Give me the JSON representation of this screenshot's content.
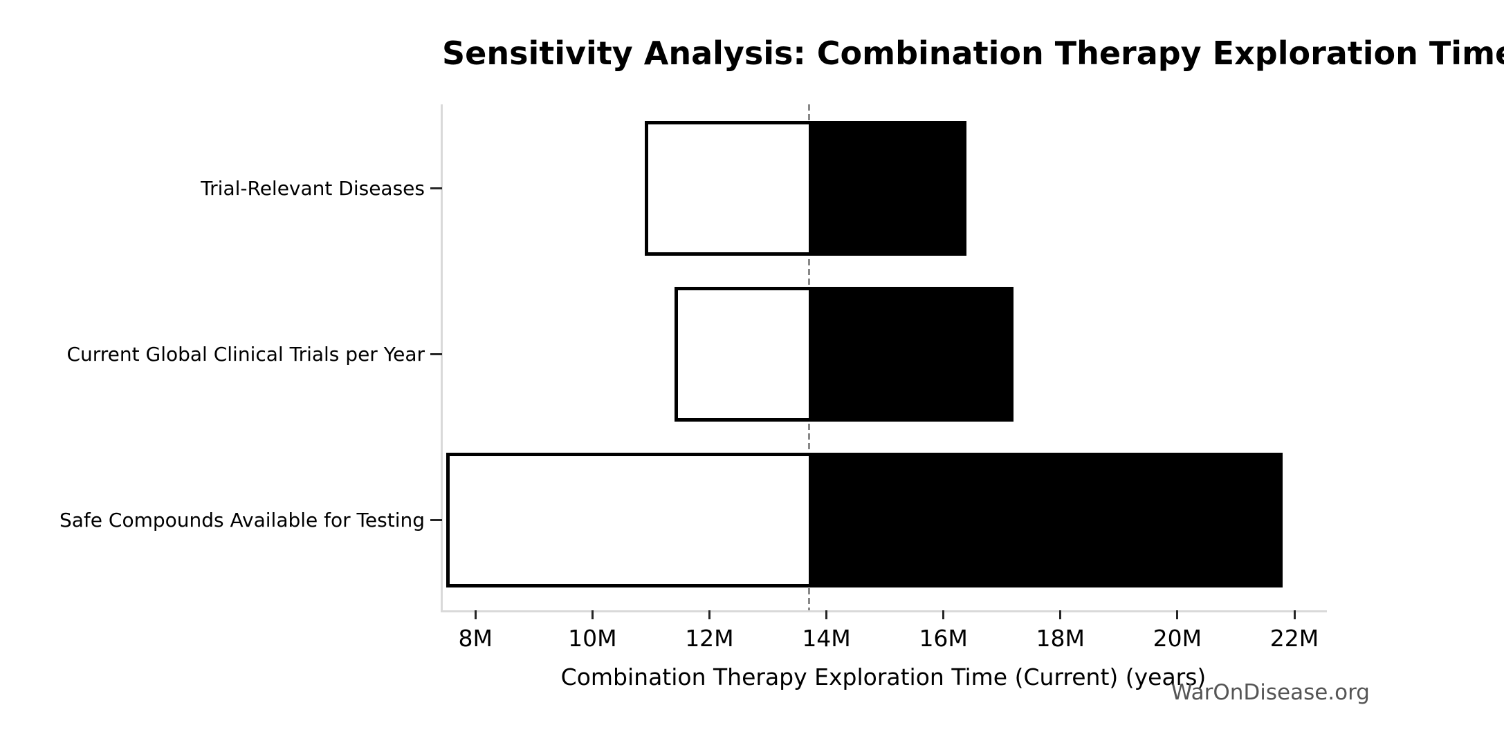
{
  "page": {
    "background": "#ffffff"
  },
  "watermark": "WarOnDisease.org",
  "chart_data": {
    "type": "bar",
    "subtype": "tornado-sensitivity",
    "orientation": "horizontal",
    "title": "Sensitivity Analysis: Combination Therapy Exploration Time (Current)",
    "xlabel": "Combination Therapy Exploration Time (Current) (years)",
    "ylabel": "",
    "categories": [
      "Trial-Relevant Diseases",
      "Current Global Clinical Trials per Year",
      "Safe Compounds Available for Testing"
    ],
    "bars": [
      {
        "label": "Trial-Relevant Diseases",
        "low": 10.9,
        "high": 16.4
      },
      {
        "label": "Current Global Clinical Trials per Year",
        "low": 11.4,
        "high": 17.2
      },
      {
        "label": "Safe Compounds Available for Testing",
        "low": 7.5,
        "high": 21.8
      }
    ],
    "baseline": 13.7,
    "unit_suffix": "M",
    "x_tick_values": [
      8,
      10,
      12,
      14,
      16,
      18,
      20,
      22
    ],
    "x_tick_labels": [
      "8M",
      "10M",
      "12M",
      "14M",
      "16M",
      "18M",
      "20M",
      "22M"
    ],
    "xlim": [
      7.43,
      22.52
    ],
    "grid": false,
    "legend": "none",
    "colors": {
      "bar_low_fill": "#ffffff",
      "bar_high_fill": "#000000",
      "bar_border": "#000000",
      "baseline_dash": "#888888",
      "spine": "#d9d9d9",
      "tick": "#262626",
      "tick_label": "#000000",
      "title": "#000000",
      "watermark": "#555555"
    }
  }
}
